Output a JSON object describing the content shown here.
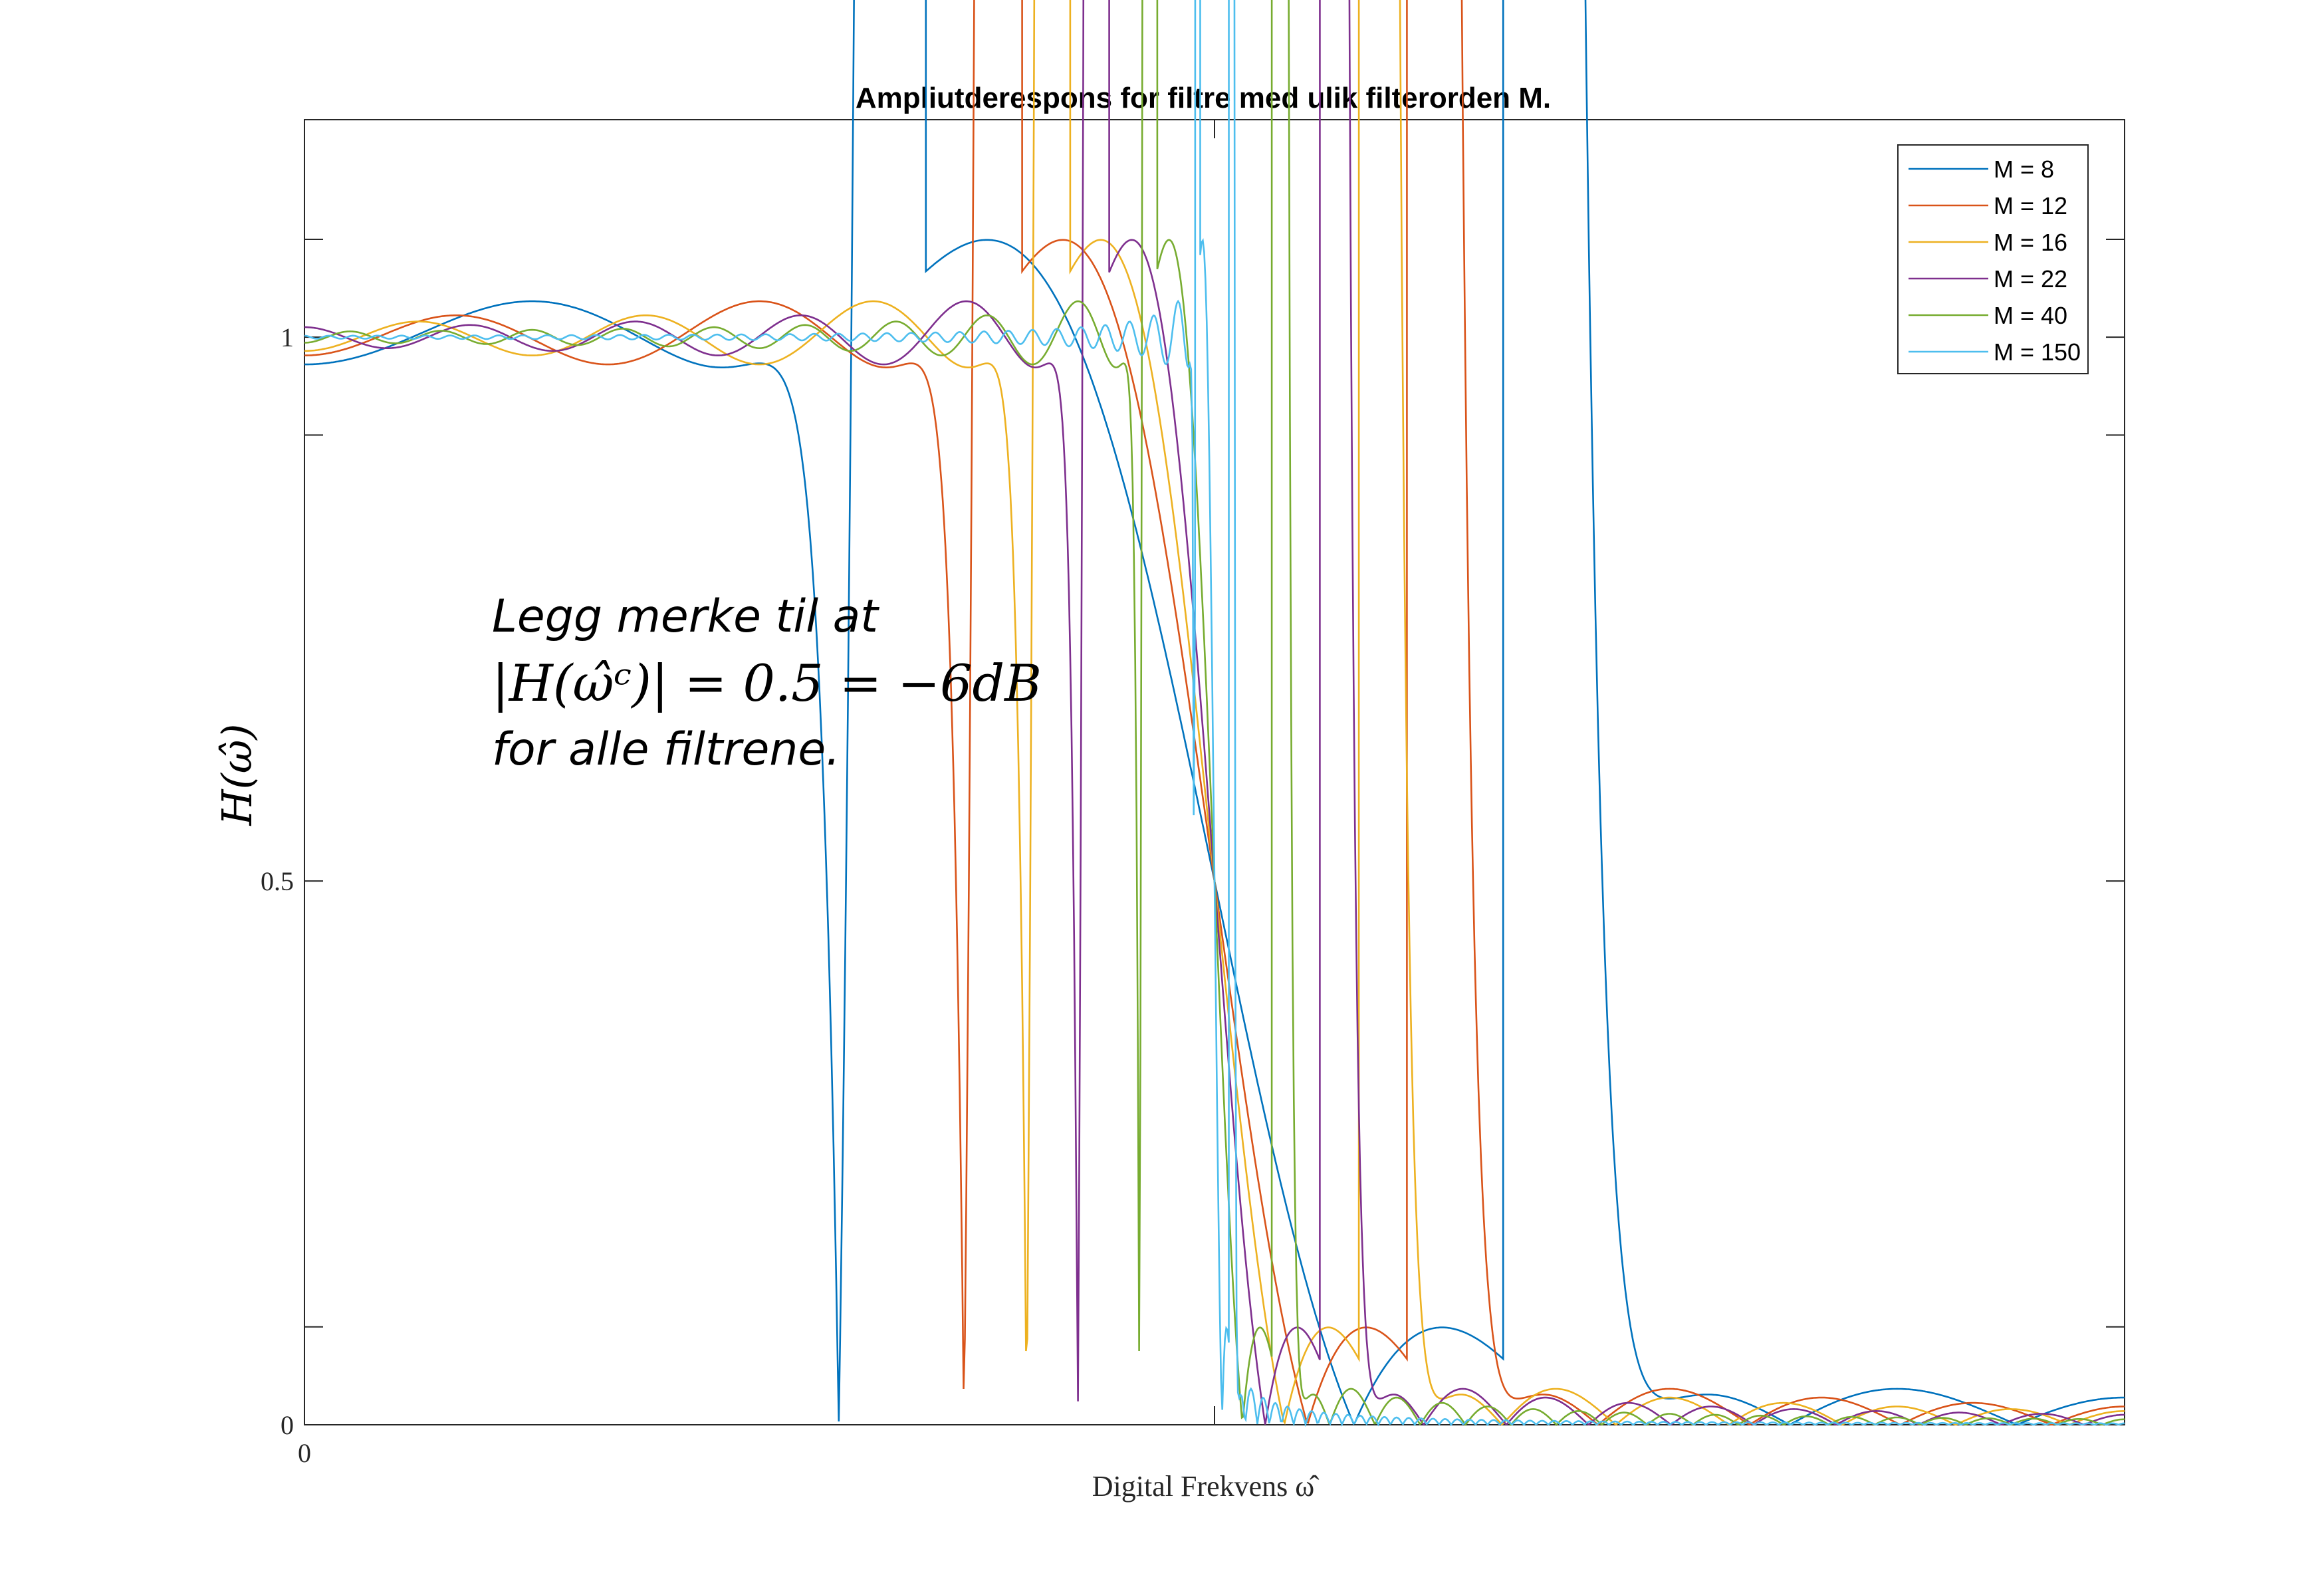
{
  "chart_data": {
    "type": "line",
    "title": "Ampliutderespons for filtre med ulik filterorden M.",
    "xlabel": "Digital Frekvens ω̂",
    "ylabel": "H(ω̂)",
    "xlim": [
      0,
      1
    ],
    "ylim": [
      0,
      1.2
    ],
    "x_ticks": [
      0
    ],
    "x_tick_labels": [
      "0"
    ],
    "y_ticks": [
      0,
      0.5,
      1
    ],
    "y_tick_labels": [
      "0",
      "0.5",
      "1"
    ],
    "cutoff_x": 0.5,
    "grid": false,
    "legend_position": "top-right",
    "colors": [
      "#0072BD",
      "#D95319",
      "#EDB120",
      "#7E2F8E",
      "#77AC30",
      "#4DBEEE"
    ],
    "series": [
      {
        "name": "M = 8",
        "M": 8
      },
      {
        "name": "M = 12",
        "M": 12
      },
      {
        "name": "M = 16",
        "M": 16
      },
      {
        "name": "M = 22",
        "M": 22
      },
      {
        "name": "M = 40",
        "M": 40
      },
      {
        "name": "M = 150",
        "M": 150
      }
    ]
  },
  "annotation": {
    "line1": "Legg merke til at",
    "line2": "|H(ω̂ᶜ)| = 0.5 = −6dB",
    "line3": "for alle filtrene."
  }
}
